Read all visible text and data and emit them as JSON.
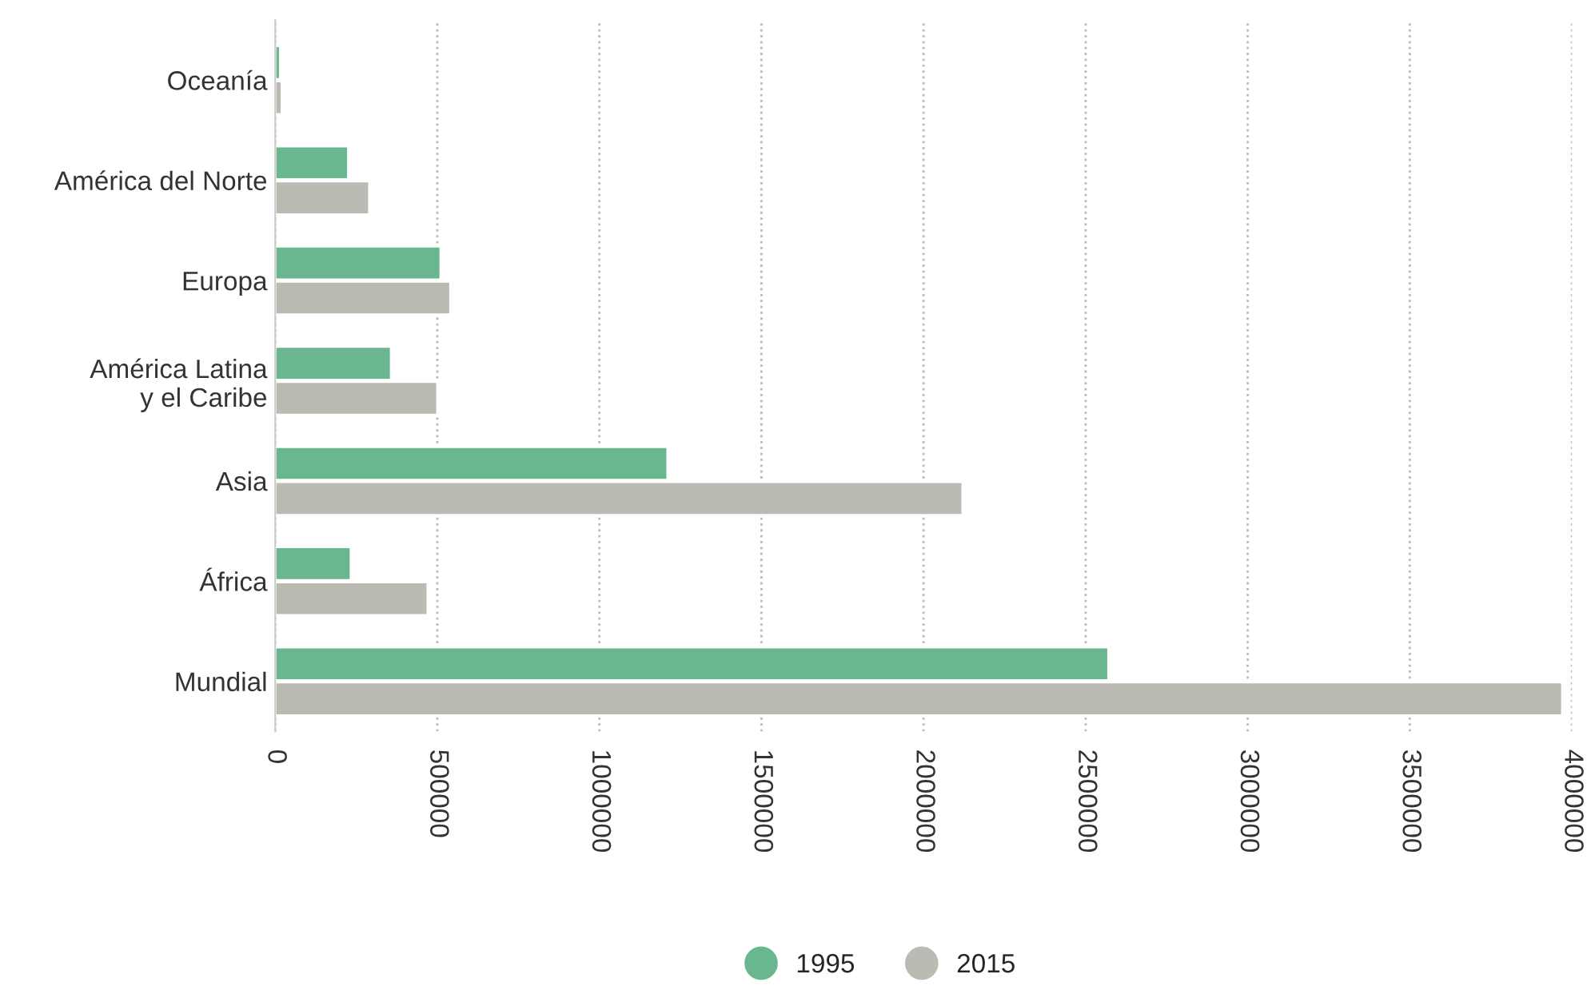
{
  "chart_data": {
    "type": "bar",
    "orientation": "horizontal",
    "categories": [
      "Oceanía",
      "América del Norte",
      "Europa",
      "América Latina\ny el Caribe",
      "Asia",
      "África",
      "Mundial"
    ],
    "series": [
      {
        "name": "1995",
        "color": "#6ab68f",
        "values": [
          15000,
          225000,
          510000,
          357000,
          1210000,
          233000,
          2570000
        ]
      },
      {
        "name": "2015",
        "color": "#bbbab3",
        "values": [
          20000,
          290000,
          540000,
          500000,
          2120000,
          470000,
          3970000
        ]
      }
    ],
    "xlim": [
      0,
      4000000
    ],
    "xticks": [
      0,
      500000,
      1000000,
      1500000,
      2000000,
      2500000,
      3000000,
      3500000,
      4000000
    ],
    "grid": "x",
    "legend": "bottom"
  }
}
